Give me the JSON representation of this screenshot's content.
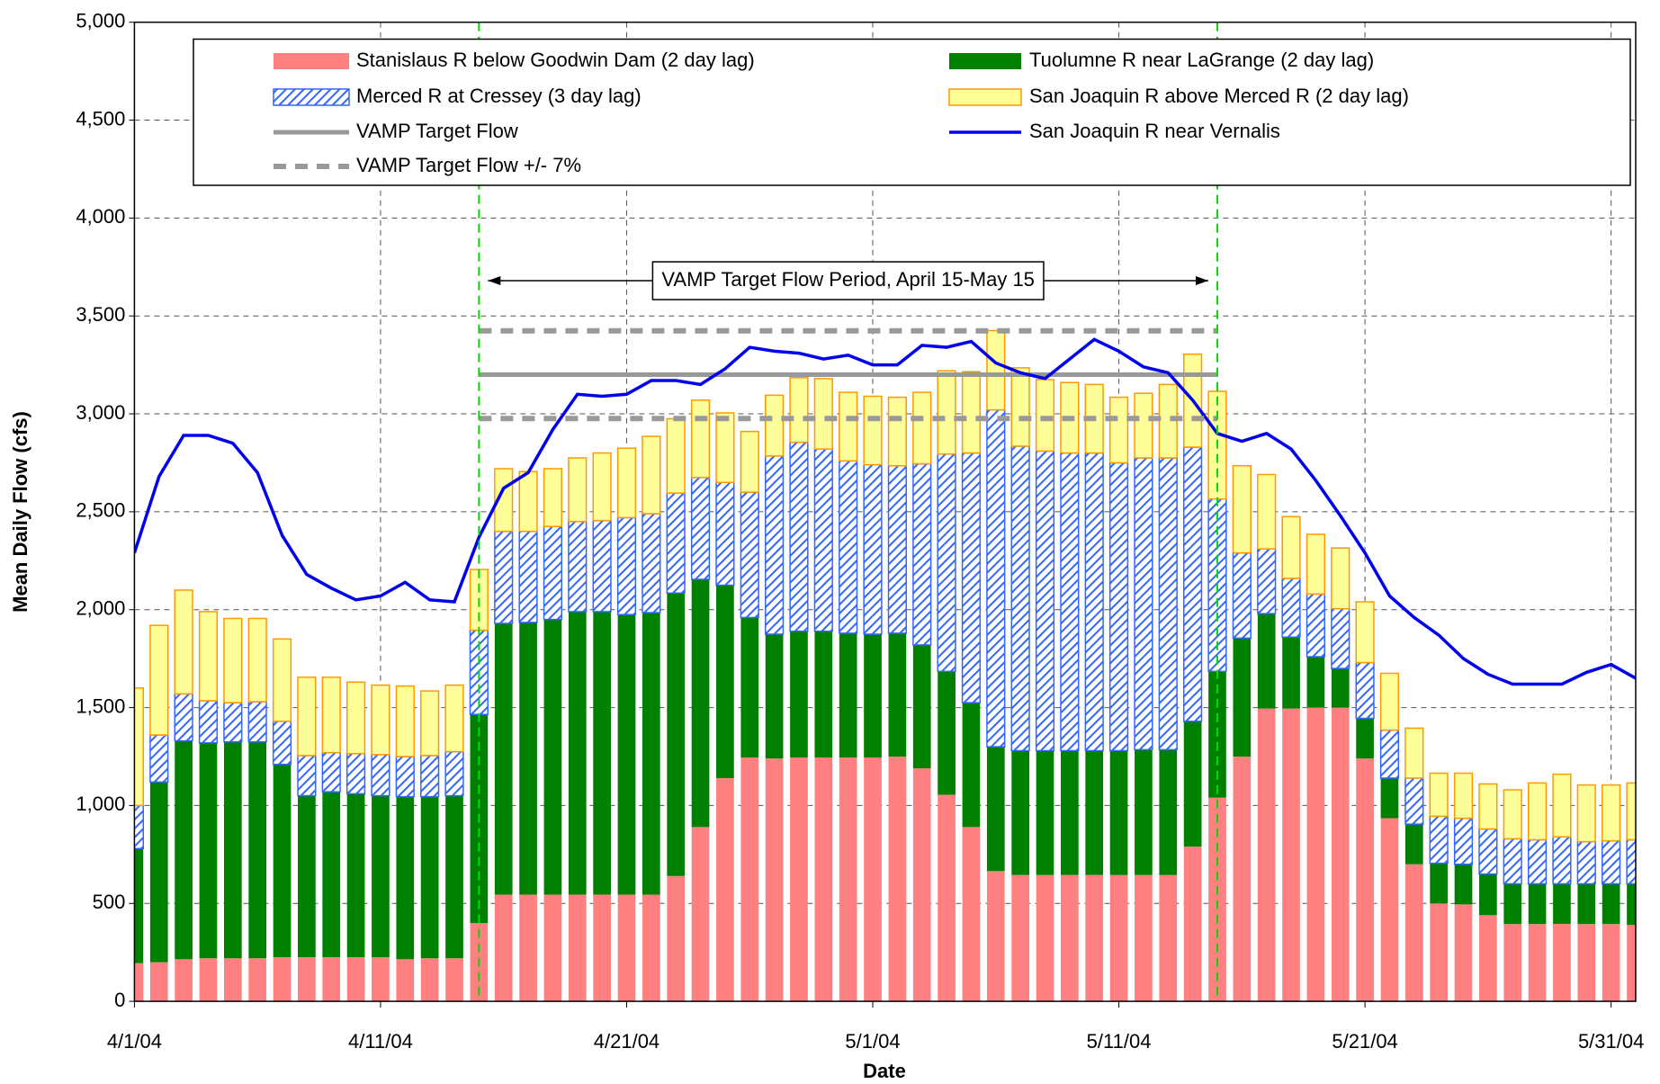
{
  "chart_data": {
    "type": "bar",
    "stacked": true,
    "xlabel": "Date",
    "ylabel": "Mean Daily Flow (cfs)",
    "x": [
      "4/1/04",
      "4/2/04",
      "4/3/04",
      "4/4/04",
      "4/5/04",
      "4/6/04",
      "4/7/04",
      "4/8/04",
      "4/9/04",
      "4/10/04",
      "4/11/04",
      "4/12/04",
      "4/13/04",
      "4/14/04",
      "4/15/04",
      "4/16/04",
      "4/17/04",
      "4/18/04",
      "4/19/04",
      "4/20/04",
      "4/21/04",
      "4/22/04",
      "4/23/04",
      "4/24/04",
      "4/25/04",
      "4/26/04",
      "4/27/04",
      "4/28/04",
      "4/29/04",
      "4/30/04",
      "5/1/04",
      "5/2/04",
      "5/3/04",
      "5/4/04",
      "5/5/04",
      "5/6/04",
      "5/7/04",
      "5/8/04",
      "5/9/04",
      "5/10/04",
      "5/11/04",
      "5/12/04",
      "5/13/04",
      "5/14/04",
      "5/15/04",
      "5/16/04",
      "5/17/04",
      "5/18/04",
      "5/19/04",
      "5/20/04",
      "5/21/04",
      "5/22/04",
      "5/23/04",
      "5/24/04",
      "5/25/04",
      "5/26/04",
      "5/27/04",
      "5/28/04",
      "5/29/04",
      "5/30/04",
      "5/31/04",
      "6/1/04"
    ],
    "xlim": [
      "4/1/04",
      "6/1/04"
    ],
    "xticks": [
      "4/1/04",
      "4/11/04",
      "4/21/04",
      "5/1/04",
      "5/11/04",
      "5/21/04",
      "5/31/04"
    ],
    "ylim": [
      0,
      5000
    ],
    "yticks": [
      0,
      500,
      {
        "value": 1000,
        "label": "1,000"
      },
      {
        "value": 1500,
        "label": "1,500"
      },
      {
        "value": 2000,
        "label": "2,000"
      },
      {
        "value": 2500,
        "label": "2,500"
      },
      {
        "value": 3000,
        "label": "3,000"
      },
      {
        "value": 3500,
        "label": "3,500"
      },
      {
        "value": 4000,
        "label": "4,000"
      },
      {
        "value": 4500,
        "label": "4,500"
      },
      {
        "value": 5000,
        "label": "5,000"
      }
    ],
    "grid": true,
    "legend": "top",
    "series": [
      {
        "name": "Stanislaus R below Goodwin Dam (2 day lag)",
        "type": "bar",
        "color": "#ff8080",
        "values": [
          195,
          200,
          215,
          220,
          220,
          220,
          225,
          225,
          225,
          225,
          225,
          215,
          220,
          220,
          400,
          545,
          545,
          545,
          545,
          545,
          545,
          545,
          640,
          890,
          1140,
          1245,
          1240,
          1245,
          1245,
          1245,
          1245,
          1250,
          1190,
          1055,
          890,
          665,
          645,
          645,
          645,
          645,
          645,
          645,
          645,
          790,
          1040,
          1250,
          1495,
          1495,
          1500,
          1500,
          1240,
          935,
          700,
          500,
          495,
          440,
          395,
          395,
          395,
          395,
          395,
          390
        ]
      },
      {
        "name": "Tuolumne R near LaGrange (2 day lag)",
        "type": "bar",
        "color": "#008000",
        "values": [
          585,
          920,
          1115,
          1100,
          1105,
          1105,
          985,
          825,
          845,
          835,
          825,
          830,
          825,
          830,
          1065,
          1385,
          1390,
          1405,
          1445,
          1445,
          1430,
          1440,
          1445,
          1265,
          985,
          715,
          635,
          645,
          645,
          635,
          630,
          630,
          630,
          630,
          635,
          635,
          635,
          635,
          635,
          635,
          635,
          640,
          640,
          640,
          645,
          605,
          485,
          365,
          260,
          200,
          205,
          205,
          205,
          205,
          205,
          210,
          205,
          205,
          205,
          205,
          205,
          210
        ]
      },
      {
        "name": "Merced R at Cressey (3 day lag)",
        "type": "bar",
        "color": "#3366ff",
        "pattern": "hatch",
        "values": [
          220,
          240,
          240,
          215,
          200,
          205,
          220,
          205,
          200,
          205,
          210,
          205,
          210,
          225,
          430,
          470,
          465,
          475,
          460,
          465,
          495,
          505,
          510,
          520,
          525,
          640,
          910,
          965,
          930,
          880,
          865,
          855,
          925,
          1110,
          1275,
          1720,
          1555,
          1530,
          1520,
          1520,
          1470,
          1490,
          1490,
          1400,
          880,
          435,
          330,
          300,
          320,
          305,
          285,
          245,
          235,
          240,
          235,
          230,
          230,
          225,
          240,
          215,
          220,
          225
        ]
      },
      {
        "name": "San Joaquin R above Merced R (2 day lag)",
        "type": "bar",
        "color": "#ffff99",
        "edge_color": "#ff9900",
        "values": [
          600,
          560,
          530,
          455,
          430,
          425,
          420,
          400,
          385,
          365,
          355,
          360,
          330,
          340,
          310,
          320,
          305,
          295,
          325,
          345,
          355,
          395,
          380,
          395,
          355,
          310,
          310,
          330,
          360,
          350,
          350,
          350,
          365,
          425,
          415,
          405,
          400,
          365,
          360,
          350,
          335,
          330,
          375,
          475,
          550,
          445,
          380,
          315,
          305,
          310,
          310,
          290,
          255,
          220,
          230,
          230,
          250,
          290,
          320,
          290,
          285,
          290
        ]
      },
      {
        "name": "VAMP Target Flow",
        "type": "line",
        "color": "#999999",
        "x": [
          "4/15/04",
          "5/15/04"
        ],
        "values": [
          3200,
          3200
        ]
      },
      {
        "name": "San Joaquin R near Vernalis",
        "type": "line",
        "color": "#0000ee",
        "values": [
          2290,
          2680,
          2890,
          2890,
          2850,
          2700,
          2380,
          2180,
          2110,
          2050,
          2070,
          2140,
          2050,
          2040,
          2370,
          2620,
          2700,
          2920,
          3100,
          3090,
          3100,
          3170,
          3170,
          3150,
          3230,
          3340,
          3320,
          3310,
          3280,
          3300,
          3250,
          3250,
          3350,
          3340,
          3370,
          3260,
          3210,
          3180,
          3280,
          3380,
          3320,
          3240,
          3210,
          3070,
          2900,
          2860,
          2900,
          2820,
          2660,
          2480,
          2290,
          2070,
          1960,
          1870,
          1750,
          1670,
          1620,
          1620,
          1620,
          1680,
          1720,
          1650
        ]
      },
      {
        "name": "VAMP Target Flow +/- 7%",
        "type": "band",
        "color": "#999999",
        "x": [
          "4/15/04",
          "5/15/04"
        ],
        "upper": [
          3424,
          3424
        ],
        "lower": [
          2976,
          2976
        ]
      }
    ],
    "annotations": [
      {
        "text": "VAMP Target Flow Period, April 15-May 15",
        "x": [
          "4/15/04",
          "5/15/04"
        ],
        "y": 3680,
        "color": "#00dd00"
      }
    ]
  }
}
